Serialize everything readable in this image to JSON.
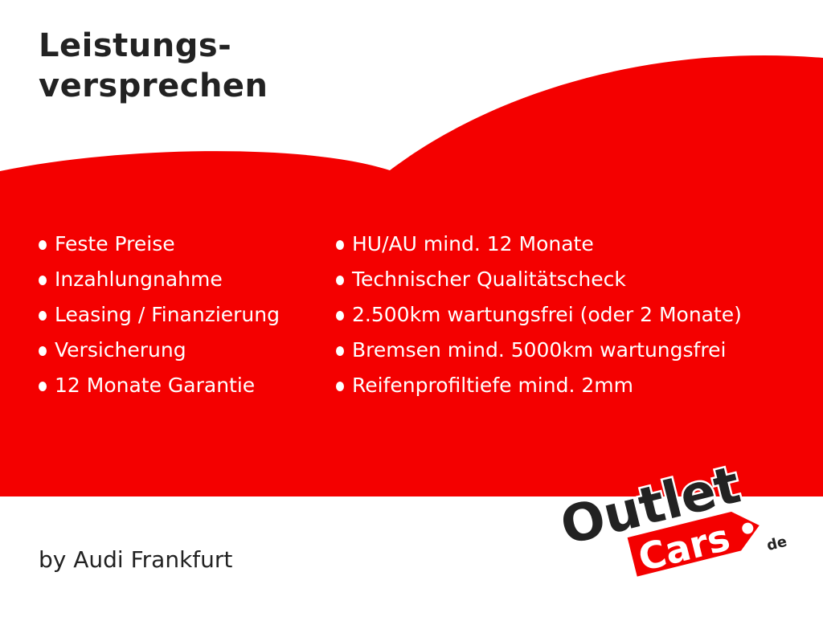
{
  "title_line1": "Leistungs-",
  "title_line2": "versprechen",
  "left_items": [
    "Feste Preise",
    "Inzahlungnahme",
    "Leasing / Finanzierung",
    "Versicherung",
    "12 Monate Garantie"
  ],
  "right_items": [
    "HU/AU mind. 12 Monate",
    "Technischer Qualitätscheck",
    "2.500km wartungsfrei (oder 2 Monate)",
    "Bremsen mind. 5000km  wartungsfrei",
    "Reifenprofiltiefe mind. 2mm"
  ],
  "footer": "by Audi Frankfurt",
  "logo": {
    "word1": "Outlet",
    "word2": "Cars",
    "suffix": "de"
  },
  "colors": {
    "red": "#f40000",
    "dark": "#222222"
  }
}
